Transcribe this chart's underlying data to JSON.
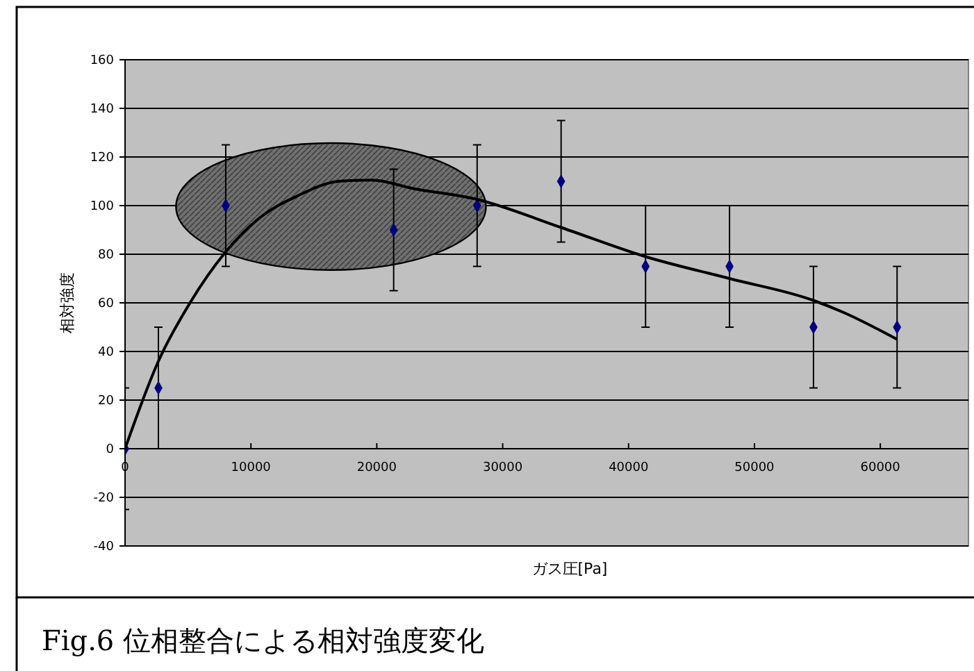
{
  "chart_data": {
    "type": "scatter",
    "title": "Fig.6 位相整合による相対強度変化",
    "xlabel": "ガス圧[Pa]",
    "ylabel": "相対強度",
    "x": [
      0,
      2650,
      8000,
      21340,
      27970,
      34640,
      41350,
      48020,
      54690,
      61330
    ],
    "series": [
      {
        "color": "#000080",
        "values": [
          0,
          25,
          100,
          90,
          100,
          110,
          75,
          75,
          50,
          50
        ],
        "errors": [
          25,
          25,
          25,
          25,
          25,
          25,
          25,
          25,
          25,
          25
        ]
      },
      {
        "type": "line",
        "marker": "none",
        "color": "#000000",
        "x": [
          0,
          2650,
          5160,
          8000,
          10700,
          13700,
          17000,
          19600,
          22900,
          28000,
          34640,
          41350,
          48020,
          54690,
          57100,
          61330
        ],
        "values": [
          0,
          36,
          60,
          81,
          95,
          104,
          110,
          110.5,
          107,
          102.5,
          91,
          79,
          70,
          61,
          56,
          45
        ]
      }
    ],
    "xlim": [
      0,
      67000
    ],
    "xticks": [
      0,
      10000,
      20000,
      30000,
      40000,
      50000,
      60000
    ],
    "ylim": [
      -40,
      160
    ],
    "yticks": [
      -40,
      -20,
      0,
      20,
      40,
      60,
      80,
      100,
      120,
      140,
      160
    ],
    "grid": "y",
    "marker": "diamond",
    "line_style": "solid"
  }
}
